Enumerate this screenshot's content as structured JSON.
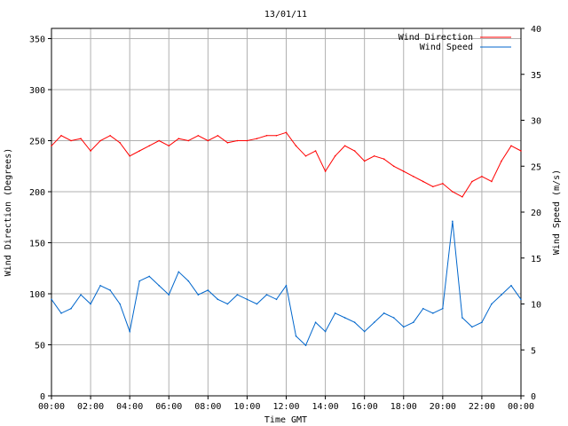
{
  "chart_data": {
    "type": "line",
    "title": "13/01/11",
    "xlabel": "Time GMT",
    "ylabel_left": "Wind Direction (Degrees)",
    "ylabel_right": "Wind Speed (m/s)",
    "x_range_hours": [
      0,
      24
    ],
    "ylim_left": [
      0,
      360
    ],
    "ylim_right": [
      0,
      40
    ],
    "grid": true,
    "legend_position": "top-right",
    "x_tick_hours": [
      0,
      2,
      4,
      6,
      8,
      10,
      12,
      14,
      16,
      18,
      20,
      22,
      24
    ],
    "x_tick_labels": [
      "00:00",
      "02:00",
      "04:00",
      "06:00",
      "08:00",
      "10:00",
      "12:00",
      "14:00",
      "16:00",
      "18:00",
      "20:00",
      "22:00",
      "00:00"
    ],
    "y_left_ticks": [
      0,
      50,
      100,
      150,
      200,
      250,
      300,
      350
    ],
    "y_left_tick_labels": [
      "0",
      "50",
      "100",
      "150",
      "200",
      "250",
      "300",
      "350"
    ],
    "y_right_ticks": [
      0,
      5,
      10,
      15,
      20,
      25,
      30,
      35,
      40
    ],
    "y_right_tick_labels": [
      "0",
      "5",
      "10",
      "15",
      "20",
      "25",
      "30",
      "35",
      "40"
    ],
    "series": [
      {
        "name": "Wind Direction",
        "axis": "left",
        "color": "#ff0000",
        "x": [
          0,
          0.5,
          1,
          1.5,
          2,
          2.5,
          3,
          3.5,
          4,
          4.5,
          5,
          5.5,
          6,
          6.5,
          7,
          7.5,
          8,
          8.5,
          9,
          9.5,
          10,
          10.5,
          11,
          11.5,
          12,
          12.5,
          13,
          13.5,
          14,
          14.5,
          15,
          15.5,
          16,
          16.5,
          17,
          17.5,
          18,
          18.5,
          19,
          19.5,
          20,
          20.5,
          21,
          21.5,
          22,
          22.5,
          23,
          23.5,
          24
        ],
        "values": [
          245,
          255,
          250,
          252,
          240,
          250,
          255,
          248,
          235,
          240,
          245,
          250,
          245,
          252,
          250,
          255,
          250,
          255,
          248,
          250,
          250,
          252,
          255,
          255,
          258,
          245,
          235,
          240,
          220,
          235,
          245,
          240,
          230,
          235,
          232,
          225,
          220,
          215,
          210,
          205,
          208,
          200,
          195,
          210,
          215,
          210,
          230,
          245,
          240
        ]
      },
      {
        "name": "Wind Speed",
        "axis": "right",
        "color": "#0066cc",
        "x": [
          0,
          0.5,
          1,
          1.5,
          2,
          2.5,
          3,
          3.5,
          4,
          4.5,
          5,
          5.5,
          6,
          6.5,
          7,
          7.5,
          8,
          8.5,
          9,
          9.5,
          10,
          10.5,
          11,
          11.5,
          12,
          12.5,
          13,
          13.5,
          14,
          14.5,
          15,
          15.5,
          16,
          16.5,
          17,
          17.5,
          18,
          18.5,
          19,
          19.5,
          20,
          20.5,
          21,
          21.5,
          22,
          22.5,
          23,
          23.5,
          24
        ],
        "values": [
          10.5,
          9.0,
          9.5,
          11.0,
          10.0,
          12.0,
          11.5,
          10.0,
          7.0,
          12.5,
          13.0,
          12.0,
          11.0,
          13.5,
          12.5,
          11.0,
          11.5,
          10.5,
          10.0,
          11.0,
          10.5,
          10.0,
          11.0,
          10.5,
          12.0,
          6.5,
          5.5,
          8.0,
          7.0,
          9.0,
          8.5,
          8.0,
          7.0,
          8.0,
          9.0,
          8.5,
          7.5,
          8.0,
          9.5,
          9.0,
          9.5,
          19.0,
          8.5,
          7.5,
          8.0,
          10.0,
          11.0,
          12.0,
          10.5
        ]
      }
    ]
  }
}
